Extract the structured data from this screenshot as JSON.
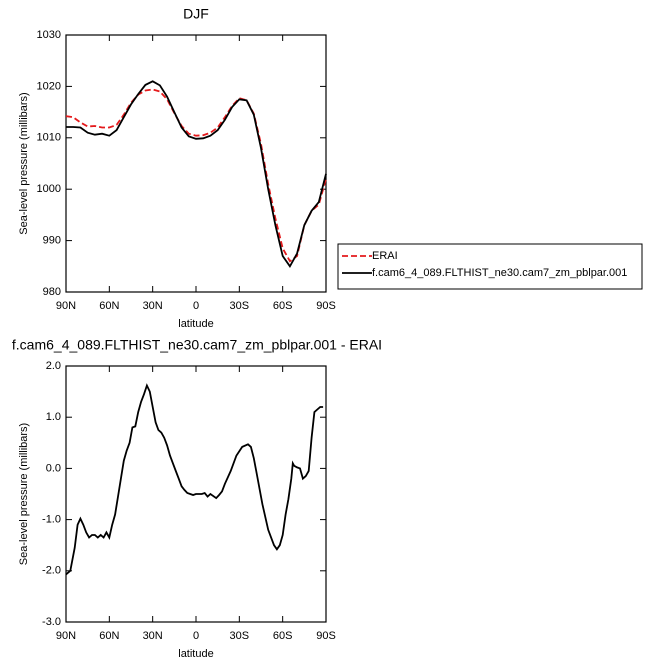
{
  "chart_data": [
    {
      "type": "line",
      "title": "DJF",
      "x_label": "latitude",
      "y_label": "Sea-level pressure (millibars)",
      "x": [
        90,
        85,
        80,
        75,
        70,
        65,
        60,
        55,
        50,
        45,
        40,
        35,
        30,
        25,
        20,
        15,
        10,
        5,
        0,
        -5,
        -10,
        -15,
        -20,
        -25,
        -30,
        -35,
        -40,
        -45,
        -50,
        -55,
        -60,
        -65,
        -70,
        -75,
        -80,
        -85,
        -90
      ],
      "series": [
        {
          "name": "ERAI",
          "color": "#e41a1c",
          "linestyle": "dashed",
          "values": [
            1014.2,
            1014,
            1013,
            1012.2,
            1012.3,
            1012,
            1012,
            1012.5,
            1014.5,
            1016.8,
            1018.4,
            1019.2,
            1019.4,
            1019,
            1017.5,
            1014.8,
            1012.3,
            1010.8,
            1010.4,
            1010.5,
            1011,
            1012,
            1014,
            1016.2,
            1017.7,
            1017.3,
            1014.7,
            1008.8,
            1001,
            994.3,
            988.5,
            986,
            987,
            993,
            995.8,
            997,
            1002
          ]
        },
        {
          "name": "f.cam6_4_089.FLTHIST_ne30.cam7_zm_pblpar.001",
          "color": "#000000",
          "linestyle": "solid",
          "values": [
            1012.1,
            1012.1,
            1012,
            1011,
            1010.6,
            1010.8,
            1010.4,
            1011.5,
            1014,
            1016.5,
            1018.5,
            1020.3,
            1021,
            1020.2,
            1018,
            1015,
            1012,
            1010.3,
            1009.8,
            1009.9,
            1010.4,
            1011.5,
            1013.5,
            1016,
            1017.5,
            1017.3,
            1014.5,
            1008,
            1000,
            993,
            987,
            985,
            987.5,
            993,
            995.8,
            997.5,
            1003
          ]
        }
      ],
      "xlim": [
        90,
        -90
      ],
      "ylim": [
        980,
        1030
      ],
      "xticks": [
        {
          "value": 90,
          "label": "90N"
        },
        {
          "value": 60,
          "label": "60N"
        },
        {
          "value": 30,
          "label": "30N"
        },
        0,
        {
          "value": -30,
          "label": "30S"
        },
        {
          "value": -60,
          "label": "60S"
        },
        {
          "value": -90,
          "label": "90S"
        }
      ],
      "yticks": [
        980,
        990,
        1000,
        1010,
        1020,
        1030
      ],
      "legend": "outside-right"
    },
    {
      "type": "line",
      "title": "f.cam6_4_089.FLTHIST_ne30.cam7_zm_pblpar.001 - ERAI",
      "x_label": "latitude",
      "y_label": "Sea-level pressure (millibars)",
      "x": [
        90,
        87,
        84,
        82,
        80,
        78,
        76,
        74,
        72,
        70,
        68,
        66,
        64,
        62,
        60,
        58,
        56,
        54,
        52,
        50,
        48,
        46,
        44,
        42,
        40,
        38,
        36,
        34,
        32,
        30,
        28,
        26,
        24,
        22,
        20,
        18,
        16,
        14,
        12,
        10,
        8,
        6,
        4,
        2,
        0,
        -4,
        -6,
        -8,
        -10,
        -14,
        -16,
        -18,
        -20,
        -24,
        -28,
        -32,
        -36,
        -38,
        -40,
        -42,
        -46,
        -50,
        -54,
        -56,
        -58,
        -60,
        -62,
        -64,
        -66,
        -67,
        -68,
        -70,
        -72,
        -74,
        -76,
        -78,
        -80,
        -82,
        -84,
        -86,
        -88
      ],
      "color": "#000000",
      "values": [
        -2.07,
        -2,
        -1.55,
        -1.1,
        -0.98,
        -1.1,
        -1.25,
        -1.35,
        -1.3,
        -1.3,
        -1.35,
        -1.3,
        -1.35,
        -1.25,
        -1.35,
        -1.1,
        -0.9,
        -0.55,
        -0.2,
        0.15,
        0.35,
        0.5,
        0.8,
        0.82,
        1.1,
        1.3,
        1.45,
        1.62,
        1.5,
        1.2,
        0.9,
        0.75,
        0.7,
        0.6,
        0.45,
        0.25,
        0.1,
        -0.05,
        -0.2,
        -0.35,
        -0.42,
        -0.48,
        -0.5,
        -0.52,
        -0.5,
        -0.5,
        -0.48,
        -0.55,
        -0.5,
        -0.58,
        -0.52,
        -0.45,
        -0.3,
        -0.05,
        0.25,
        0.42,
        0.47,
        0.42,
        0.2,
        -0.1,
        -0.7,
        -1.2,
        -1.5,
        -1.58,
        -1.5,
        -1.3,
        -0.9,
        -0.6,
        -0.2,
        0.1,
        0.05,
        0.02,
        0,
        -0.2,
        -0.15,
        -0.05,
        0.6,
        1.1,
        1.15,
        1.2,
        1.2
      ],
      "xlim": [
        90,
        -90
      ],
      "ylim": [
        -3,
        2
      ],
      "xticks": [
        {
          "value": 90,
          "label": "90N"
        },
        {
          "value": 60,
          "label": "60N"
        },
        {
          "value": 30,
          "label": "30N"
        },
        0,
        {
          "value": -30,
          "label": "30S"
        },
        {
          "value": -60,
          "label": "60S"
        },
        {
          "value": -90,
          "label": "90S"
        }
      ],
      "yticks": [
        {
          "value": -3,
          "label": "-3.0"
        },
        {
          "value": -2,
          "label": "-2.0"
        },
        {
          "value": -1,
          "label": "-1.0"
        },
        {
          "value": 0,
          "label": "0.0"
        },
        {
          "value": 1,
          "label": "1.0"
        },
        {
          "value": 2,
          "label": "2.0"
        }
      ]
    }
  ]
}
